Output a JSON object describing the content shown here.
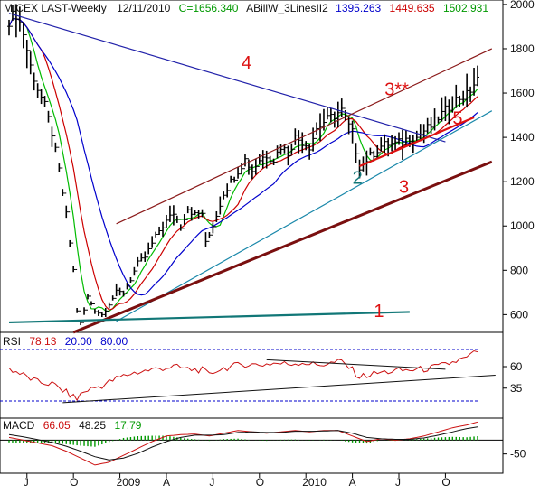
{
  "colors": {
    "price_bar": "#000000",
    "ma_fast": "#00bb00",
    "ma_mid": "#cc0000",
    "ma_slow": "#0000cc",
    "trend_label": "#dd1111",
    "trend_label_teal": "#117777",
    "rsi_line": "#cc1111",
    "macd_line": "#cc1111",
    "signal_line": "#111111",
    "histogram": "#009900",
    "rsi_header_value": "#cc1111",
    "rsi_low_value": "#0000cc",
    "rsi_high_value": "#0000cc",
    "macd_value1": "#cc1111",
    "macd_value2": "#111111",
    "macd_value3": "#009900",
    "header_close": "#009900",
    "header_v1": "#0000cc",
    "header_v2": "#cc0000",
    "header_v3": "#009900"
  },
  "header": {
    "title": "MICEX LAST-Weekly",
    "date": "12/11/2010",
    "close": "C=1656.340",
    "indicator": "ABillW_3LinesII2",
    "v1": "1395.263",
    "v2": "1449.635",
    "v3": "1502.931"
  },
  "rsi_header": {
    "label": "RSI",
    "value": "78.13",
    "low": "20.00",
    "high": "80.00"
  },
  "macd_header": {
    "label": "MACD",
    "v1": "66.05",
    "v2": "48.25",
    "v3": "17.79"
  },
  "trend_labels": [
    "4",
    "3**",
    "5",
    "2",
    "3",
    "1"
  ],
  "chart_data": {
    "type": "line",
    "title": "MICEX LAST-Weekly",
    "price_axis": {
      "ticks": [
        600,
        800,
        1000,
        1200,
        1400,
        1600,
        1800,
        2000
      ],
      "ylim": [
        520,
        2020
      ]
    },
    "rsi_axis": {
      "ticks": [
        35,
        60
      ],
      "ylim": [
        0,
        100
      ],
      "levels": [
        20,
        80
      ]
    },
    "macd_axis": {
      "ticks": [
        -50
      ],
      "ylim": [
        -120,
        80
      ]
    },
    "time_axis": {
      "labels": [
        "J",
        "O",
        "2009",
        "A",
        "J",
        "O",
        "2010",
        "A",
        "J",
        "O"
      ],
      "label_weeks": [
        5,
        18,
        31,
        44,
        57,
        70,
        83,
        96,
        109,
        122
      ],
      "weeks": 135
    },
    "price_anchors": [
      [
        0,
        1930
      ],
      [
        2,
        1960
      ],
      [
        4,
        1870
      ],
      [
        6,
        1720
      ],
      [
        8,
        1620
      ],
      [
        10,
        1540
      ],
      [
        12,
        1420
      ],
      [
        14,
        1250
      ],
      [
        16,
        1050
      ],
      [
        18,
        800
      ],
      [
        19,
        620
      ],
      [
        20,
        560
      ],
      [
        21,
        620
      ],
      [
        22,
        680
      ],
      [
        24,
        620
      ],
      [
        26,
        600
      ],
      [
        28,
        650
      ],
      [
        30,
        700
      ],
      [
        32,
        700
      ],
      [
        34,
        760
      ],
      [
        36,
        830
      ],
      [
        38,
        860
      ],
      [
        40,
        920
      ],
      [
        42,
        980
      ],
      [
        44,
        1020
      ],
      [
        46,
        1060
      ],
      [
        48,
        1000
      ],
      [
        50,
        1080
      ],
      [
        52,
        1050
      ],
      [
        54,
        1060
      ],
      [
        55,
        920
      ],
      [
        56,
        960
      ],
      [
        58,
        1050
      ],
      [
        60,
        1150
      ],
      [
        62,
        1200
      ],
      [
        64,
        1250
      ],
      [
        66,
        1300
      ],
      [
        68,
        1250
      ],
      [
        70,
        1300
      ],
      [
        72,
        1320
      ],
      [
        74,
        1300
      ],
      [
        76,
        1360
      ],
      [
        78,
        1330
      ],
      [
        80,
        1400
      ],
      [
        82,
        1380
      ],
      [
        84,
        1360
      ],
      [
        86,
        1440
      ],
      [
        88,
        1470
      ],
      [
        90,
        1490
      ],
      [
        92,
        1510
      ],
      [
        93,
        1520
      ],
      [
        94,
        1480
      ],
      [
        96,
        1420
      ],
      [
        97,
        1340
      ],
      [
        98,
        1270
      ],
      [
        100,
        1300
      ],
      [
        102,
        1330
      ],
      [
        104,
        1360
      ],
      [
        106,
        1370
      ],
      [
        108,
        1370
      ],
      [
        110,
        1380
      ],
      [
        112,
        1400
      ],
      [
        114,
        1400
      ],
      [
        116,
        1430
      ],
      [
        118,
        1450
      ],
      [
        120,
        1490
      ],
      [
        122,
        1520
      ],
      [
        124,
        1560
      ],
      [
        126,
        1580
      ],
      [
        128,
        1590
      ],
      [
        130,
        1640
      ],
      [
        131,
        1656
      ]
    ],
    "ma_periods": {
      "fast": 5,
      "mid": 10,
      "slow": 20
    },
    "trendlines": [
      {
        "id": "4",
        "from": [
          0,
          1960
        ],
        "to": [
          122,
          1380
        ],
        "label_week": 65,
        "label_price": 1710
      },
      {
        "id": "3**",
        "from": [
          30,
          1010
        ],
        "to": [
          135,
          1800
        ],
        "label_week": 105,
        "label_price": 1590
      },
      {
        "id": "5",
        "from": [
          98,
          1270
        ],
        "to": [
          130,
          1490
        ],
        "label_week": 124,
        "label_price": 1460
      },
      {
        "id": "2",
        "from": [
          30,
          570
        ],
        "to": [
          135,
          1520
        ],
        "label_week": 96,
        "label_price": 1190
      },
      {
        "id": "3",
        "from": [
          18,
          520
        ],
        "to": [
          135,
          1290
        ],
        "label_week": 109,
        "label_price": 1150
      },
      {
        "id": "1",
        "from": [
          0,
          565
        ],
        "to": [
          112,
          612
        ],
        "label_week": 102,
        "label_price": 590
      }
    ],
    "rsi_anchors": [
      [
        0,
        58
      ],
      [
        4,
        50
      ],
      [
        8,
        42
      ],
      [
        12,
        40
      ],
      [
        16,
        30
      ],
      [
        18,
        25
      ],
      [
        19,
        22
      ],
      [
        20,
        28
      ],
      [
        22,
        33
      ],
      [
        26,
        38
      ],
      [
        30,
        46
      ],
      [
        34,
        52
      ],
      [
        38,
        55
      ],
      [
        42,
        58
      ],
      [
        46,
        60
      ],
      [
        50,
        57
      ],
      [
        54,
        56
      ],
      [
        56,
        50
      ],
      [
        58,
        56
      ],
      [
        62,
        60
      ],
      [
        66,
        63
      ],
      [
        70,
        62
      ],
      [
        74,
        64
      ],
      [
        78,
        63
      ],
      [
        82,
        65
      ],
      [
        86,
        62
      ],
      [
        90,
        64
      ],
      [
        93,
        66
      ],
      [
        96,
        56
      ],
      [
        98,
        48
      ],
      [
        100,
        50
      ],
      [
        104,
        53
      ],
      [
        108,
        55
      ],
      [
        112,
        56
      ],
      [
        116,
        57
      ],
      [
        120,
        60
      ],
      [
        124,
        65
      ],
      [
        128,
        70
      ],
      [
        131,
        78
      ]
    ],
    "macd_anchors": [
      [
        0,
        10
      ],
      [
        4,
        0
      ],
      [
        8,
        -10
      ],
      [
        12,
        -20
      ],
      [
        16,
        -40
      ],
      [
        20,
        -65
      ],
      [
        24,
        -90
      ],
      [
        28,
        -80
      ],
      [
        32,
        -55
      ],
      [
        36,
        -30
      ],
      [
        40,
        -5
      ],
      [
        44,
        15
      ],
      [
        48,
        20
      ],
      [
        52,
        22
      ],
      [
        56,
        15
      ],
      [
        60,
        25
      ],
      [
        64,
        35
      ],
      [
        68,
        30
      ],
      [
        72,
        25
      ],
      [
        76,
        30
      ],
      [
        80,
        35
      ],
      [
        84,
        30
      ],
      [
        88,
        35
      ],
      [
        92,
        35
      ],
      [
        96,
        15
      ],
      [
        100,
        -5
      ],
      [
        104,
        5
      ],
      [
        108,
        0
      ],
      [
        112,
        5
      ],
      [
        116,
        15
      ],
      [
        120,
        30
      ],
      [
        124,
        45
      ],
      [
        128,
        55
      ],
      [
        131,
        66
      ]
    ],
    "signal_anchors": [
      [
        0,
        20
      ],
      [
        4,
        12
      ],
      [
        8,
        2
      ],
      [
        12,
        -8
      ],
      [
        16,
        -22
      ],
      [
        20,
        -40
      ],
      [
        24,
        -60
      ],
      [
        28,
        -72
      ],
      [
        32,
        -65
      ],
      [
        36,
        -48
      ],
      [
        40,
        -25
      ],
      [
        44,
        -5
      ],
      [
        48,
        10
      ],
      [
        52,
        18
      ],
      [
        56,
        18
      ],
      [
        60,
        20
      ],
      [
        64,
        28
      ],
      [
        68,
        30
      ],
      [
        72,
        28
      ],
      [
        76,
        28
      ],
      [
        80,
        32
      ],
      [
        84,
        32
      ],
      [
        88,
        33
      ],
      [
        92,
        35
      ],
      [
        96,
        25
      ],
      [
        100,
        10
      ],
      [
        104,
        5
      ],
      [
        108,
        3
      ],
      [
        112,
        3
      ],
      [
        116,
        8
      ],
      [
        120,
        18
      ],
      [
        124,
        30
      ],
      [
        128,
        42
      ],
      [
        131,
        48
      ]
    ]
  }
}
